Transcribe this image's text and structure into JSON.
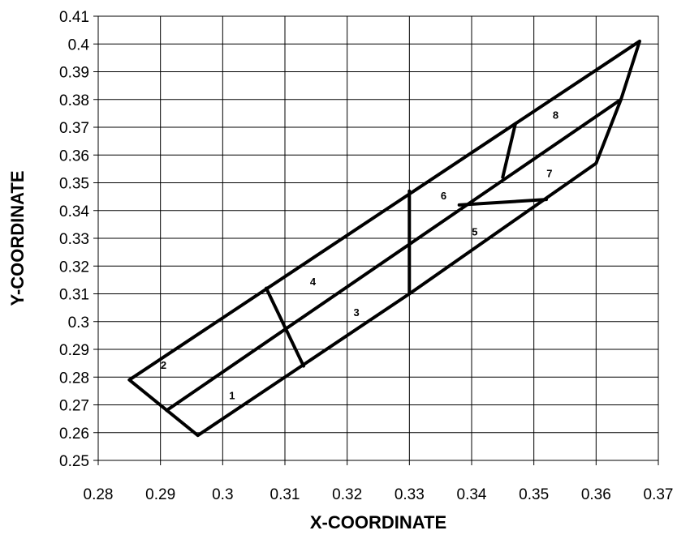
{
  "chart_data": {
    "type": "line",
    "xlabel": "X-COORDINATE",
    "ylabel": "Y-COORDINATE",
    "xlim": [
      0.28,
      0.37
    ],
    "ylim": [
      0.25,
      0.41
    ],
    "xticks": [
      "0.28",
      "0.29",
      "0.3",
      "0.31",
      "0.32",
      "0.33",
      "0.34",
      "0.35",
      "0.36",
      "0.37"
    ],
    "yticks": [
      "0.25",
      "0.26",
      "0.27",
      "0.28",
      "0.29",
      "0.3",
      "0.31",
      "0.32",
      "0.33",
      "0.34",
      "0.35",
      "0.36",
      "0.37",
      "0.38",
      "0.39",
      "0.4",
      "0.41"
    ],
    "grid": true,
    "series": [
      {
        "x": [
          0.285,
          0.367,
          0.364,
          0.36,
          0.33,
          0.296,
          0.285
        ],
        "y": [
          0.279,
          0.401,
          0.38,
          0.357,
          0.31,
          0.259,
          0.279
        ]
      },
      {
        "x": [
          0.291,
          0.364
        ],
        "y": [
          0.268,
          0.38
        ]
      },
      {
        "x": [
          0.307,
          0.313
        ],
        "y": [
          0.312,
          0.284
        ]
      },
      {
        "x": [
          0.33,
          0.33
        ],
        "y": [
          0.347,
          0.31
        ]
      },
      {
        "x": [
          0.347,
          0.345
        ],
        "y": [
          0.371,
          0.352
        ]
      },
      {
        "x": [
          0.338,
          0.352
        ],
        "y": [
          0.342,
          0.344
        ]
      }
    ],
    "annotations": [
      {
        "text": "1",
        "x": 0.3015,
        "y": 0.2735
      },
      {
        "text": "2",
        "x": 0.2905,
        "y": 0.2845
      },
      {
        "text": "3",
        "x": 0.3215,
        "y": 0.3035
      },
      {
        "text": "4",
        "x": 0.3145,
        "y": 0.3145
      },
      {
        "text": "5",
        "x": 0.3405,
        "y": 0.3325
      },
      {
        "text": "6",
        "x": 0.3355,
        "y": 0.3455
      },
      {
        "text": "7",
        "x": 0.3525,
        "y": 0.3535
      },
      {
        "text": "8",
        "x": 0.3535,
        "y": 0.3745
      }
    ]
  }
}
